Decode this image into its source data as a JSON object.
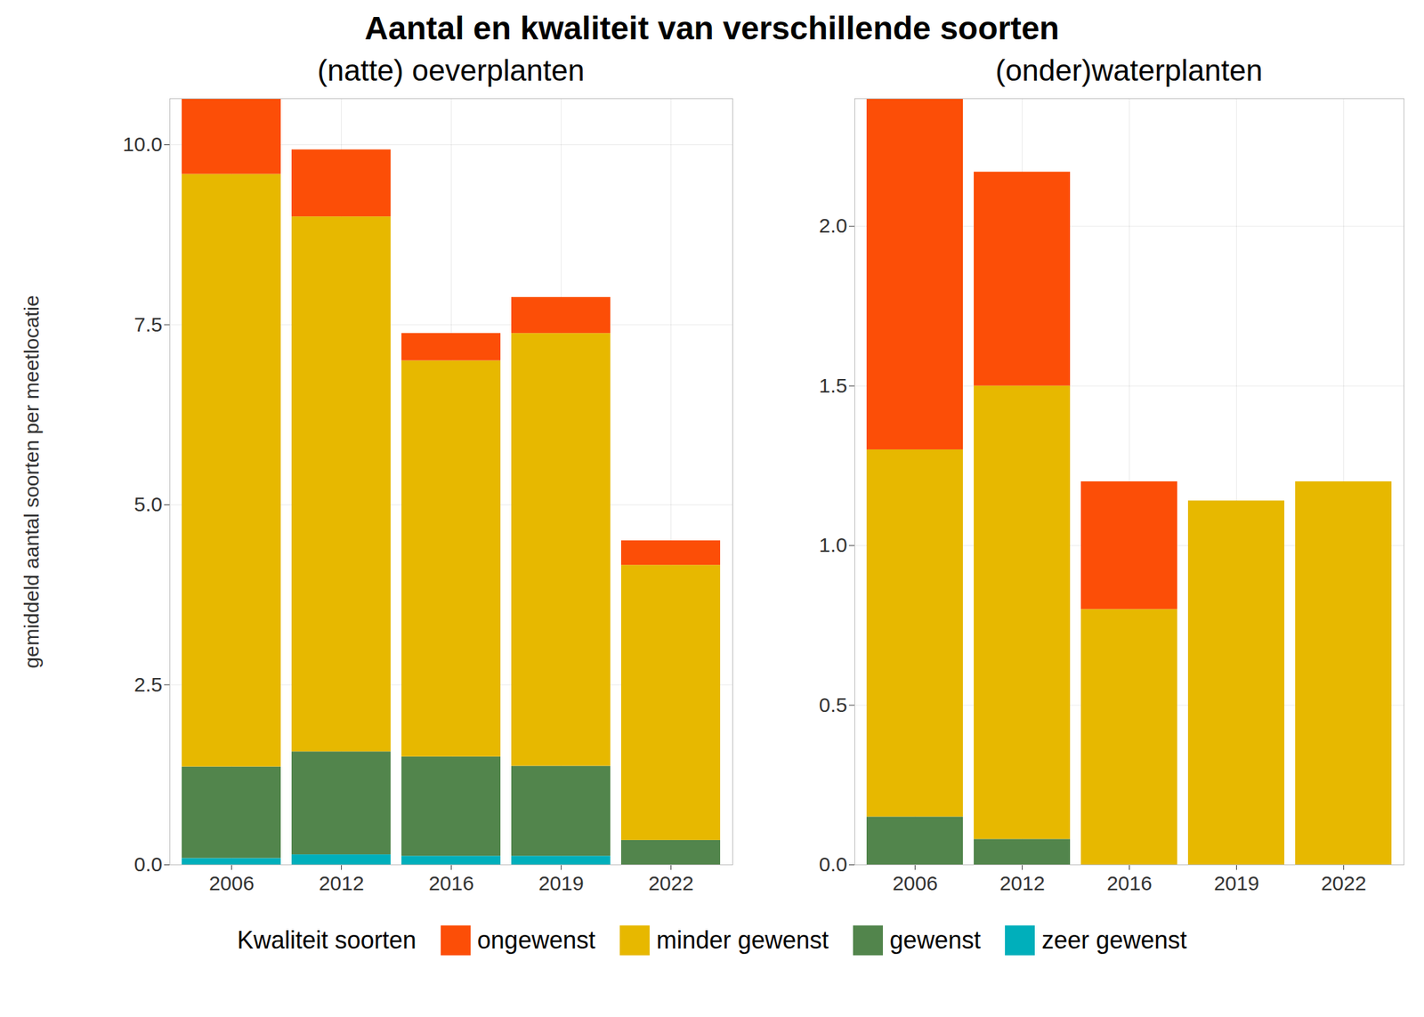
{
  "chart_data": [
    {
      "type": "bar",
      "stacked": true,
      "grid": true,
      "legend": "bottom",
      "title": "Aantal en kwaliteit van verschillende soorten",
      "subtitle": "(natte) oeverplanten",
      "y_label": "gemiddeld aantal soorten per meetlocatie",
      "legend_title": "Kwaliteit soorten",
      "categories": [
        "2006",
        "2012",
        "2016",
        "2019",
        "2022"
      ],
      "ylim": [
        0,
        10.64
      ],
      "yticks": [
        {
          "value": 0,
          "label": "0.0"
        },
        2.5,
        {
          "value": 5,
          "label": "5.0"
        },
        7.5,
        {
          "value": 10,
          "label": "10.0"
        }
      ],
      "series": [
        {
          "name": "zeer gewenst",
          "color": "#00AFBB",
          "values": [
            0.09,
            0.14,
            0.12,
            0.12,
            0
          ]
        },
        {
          "name": "gewenst",
          "color": "#52854C",
          "values": [
            1.27,
            1.43,
            1.38,
            1.25,
            0.34
          ]
        },
        {
          "name": "minder gewenst",
          "color": "#E7B800",
          "values": [
            8.23,
            7.43,
            5.5,
            6.01,
            3.82
          ]
        },
        {
          "name": "ongewenst",
          "color": "#FC4E07",
          "values": [
            1.05,
            0.93,
            0.38,
            0.5,
            0.34
          ]
        }
      ]
    },
    {
      "type": "bar",
      "stacked": true,
      "grid": true,
      "subtitle": "(onder)waterplanten",
      "categories": [
        "2006",
        "2012",
        "2016",
        "2019",
        "2022"
      ],
      "ylim": [
        0,
        2.4
      ],
      "yticks": [
        {
          "value": 0,
          "label": "0.0"
        },
        0.5,
        {
          "value": 1,
          "label": "1.0"
        },
        1.5,
        {
          "value": 2,
          "label": "2.0"
        }
      ],
      "series": [
        {
          "name": "zeer gewenst",
          "color": "#00AFBB",
          "values": [
            0,
            0,
            0,
            0,
            0
          ]
        },
        {
          "name": "gewenst",
          "color": "#52854C",
          "values": [
            0.15,
            0.08,
            0,
            0,
            0
          ]
        },
        {
          "name": "minder gewenst",
          "color": "#E7B800",
          "values": [
            1.15,
            1.42,
            0.8,
            1.14,
            1.2
          ]
        },
        {
          "name": "ongewenst",
          "color": "#FC4E07",
          "values": [
            1.1,
            0.67,
            0.4,
            0,
            0
          ]
        }
      ]
    }
  ]
}
